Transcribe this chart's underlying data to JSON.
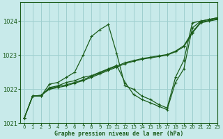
{
  "title": "Graphe pression niveau de la mer (hPa)",
  "bg_color": "#c8eaea",
  "grid_color": "#9ecfcf",
  "line_color": "#1a5c1a",
  "xlim": [
    -0.5,
    23
  ],
  "ylim": [
    1021.0,
    1024.55
  ],
  "yticks": [
    1021,
    1022,
    1023,
    1024
  ],
  "xticks": [
    0,
    1,
    2,
    3,
    4,
    5,
    6,
    7,
    8,
    9,
    10,
    11,
    12,
    13,
    14,
    15,
    16,
    17,
    18,
    19,
    20,
    21,
    22,
    23
  ],
  "series": [
    {
      "x": [
        0,
        1,
        2,
        3,
        4,
        5,
        6,
        7,
        8,
        9,
        10,
        11,
        12,
        13,
        14,
        15,
        16,
        17,
        18,
        19,
        20,
        21,
        22,
        23
      ],
      "y": [
        1021.15,
        1021.8,
        1021.8,
        1022.15,
        1022.2,
        1022.35,
        1022.5,
        1023.0,
        1023.55,
        1023.75,
        1023.9,
        1023.05,
        1022.1,
        1022.0,
        1021.8,
        1021.7,
        1021.55,
        1021.45,
        1022.35,
        1022.85,
        1023.95,
        1024.0,
        1024.05,
        1024.1
      ]
    },
    {
      "x": [
        0,
        1,
        2,
        3,
        4,
        5,
        6,
        7,
        8,
        9,
        10,
        11,
        12,
        13,
        14,
        15,
        16,
        17,
        18,
        19,
        20,
        21,
        22,
        23
      ],
      "y": [
        1021.15,
        1021.8,
        1021.8,
        1022.05,
        1022.1,
        1022.2,
        1022.25,
        1022.35,
        1022.4,
        1022.5,
        1022.6,
        1022.7,
        1022.2,
        1021.85,
        1021.7,
        1021.6,
        1021.5,
        1021.4,
        1022.2,
        1022.6,
        1023.8,
        1024.0,
        1024.05,
        1024.1
      ]
    },
    {
      "x": [
        0,
        1,
        2,
        3,
        4,
        5,
        6,
        7,
        8,
        9,
        10,
        11,
        12,
        13,
        14,
        15,
        16,
        17,
        18,
        19,
        20,
        21,
        22,
        23
      ],
      "y": [
        1021.15,
        1021.8,
        1021.82,
        1022.0,
        1022.05,
        1022.1,
        1022.18,
        1022.25,
        1022.35,
        1022.45,
        1022.55,
        1022.65,
        1022.75,
        1022.82,
        1022.88,
        1022.92,
        1022.96,
        1023.0,
        1023.1,
        1023.25,
        1023.65,
        1023.95,
        1024.0,
        1024.05
      ]
    },
    {
      "x": [
        0,
        1,
        2,
        3,
        4,
        5,
        6,
        7,
        8,
        9,
        10,
        11,
        12,
        13,
        14,
        15,
        16,
        17,
        18,
        19,
        20,
        21,
        22,
        23
      ],
      "y": [
        1021.15,
        1021.8,
        1021.82,
        1022.02,
        1022.08,
        1022.13,
        1022.2,
        1022.28,
        1022.38,
        1022.48,
        1022.58,
        1022.68,
        1022.78,
        1022.84,
        1022.9,
        1022.94,
        1022.98,
        1023.02,
        1023.12,
        1023.28,
        1023.68,
        1023.97,
        1024.02,
        1024.07
      ]
    }
  ]
}
